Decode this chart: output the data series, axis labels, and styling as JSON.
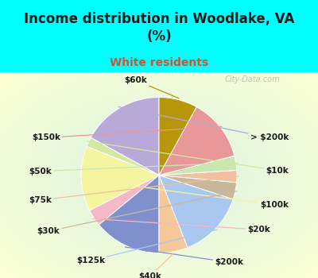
{
  "title": "Income distribution in Woodlake, VA\n(%)",
  "subtitle": "White residents",
  "title_color": "#1a1a1a",
  "subtitle_color": "#cc5533",
  "bg_cyan": "#00ffff",
  "bg_chart_gradient": true,
  "labels": [
    "> $200k",
    "$10k",
    "$100k",
    "$20k",
    "$200k",
    "$40k",
    "$125k",
    "$30k",
    "$75k",
    "$50k",
    "$150k",
    "$60k"
  ],
  "values": [
    17.0,
    2.0,
    13.5,
    3.5,
    14.0,
    6.0,
    14.0,
    3.5,
    2.5,
    3.0,
    13.0,
    8.0
  ],
  "colors": [
    "#b8a9d9",
    "#d4e8a0",
    "#f5f5a0",
    "#f5b8c8",
    "#8090cc",
    "#f5c89a",
    "#a8c8f0",
    "#c8b89a",
    "#f0c0a0",
    "#c8e8b0",
    "#e89898",
    "#b8960a"
  ],
  "startangle": 90,
  "watermark": "City-Data.com"
}
